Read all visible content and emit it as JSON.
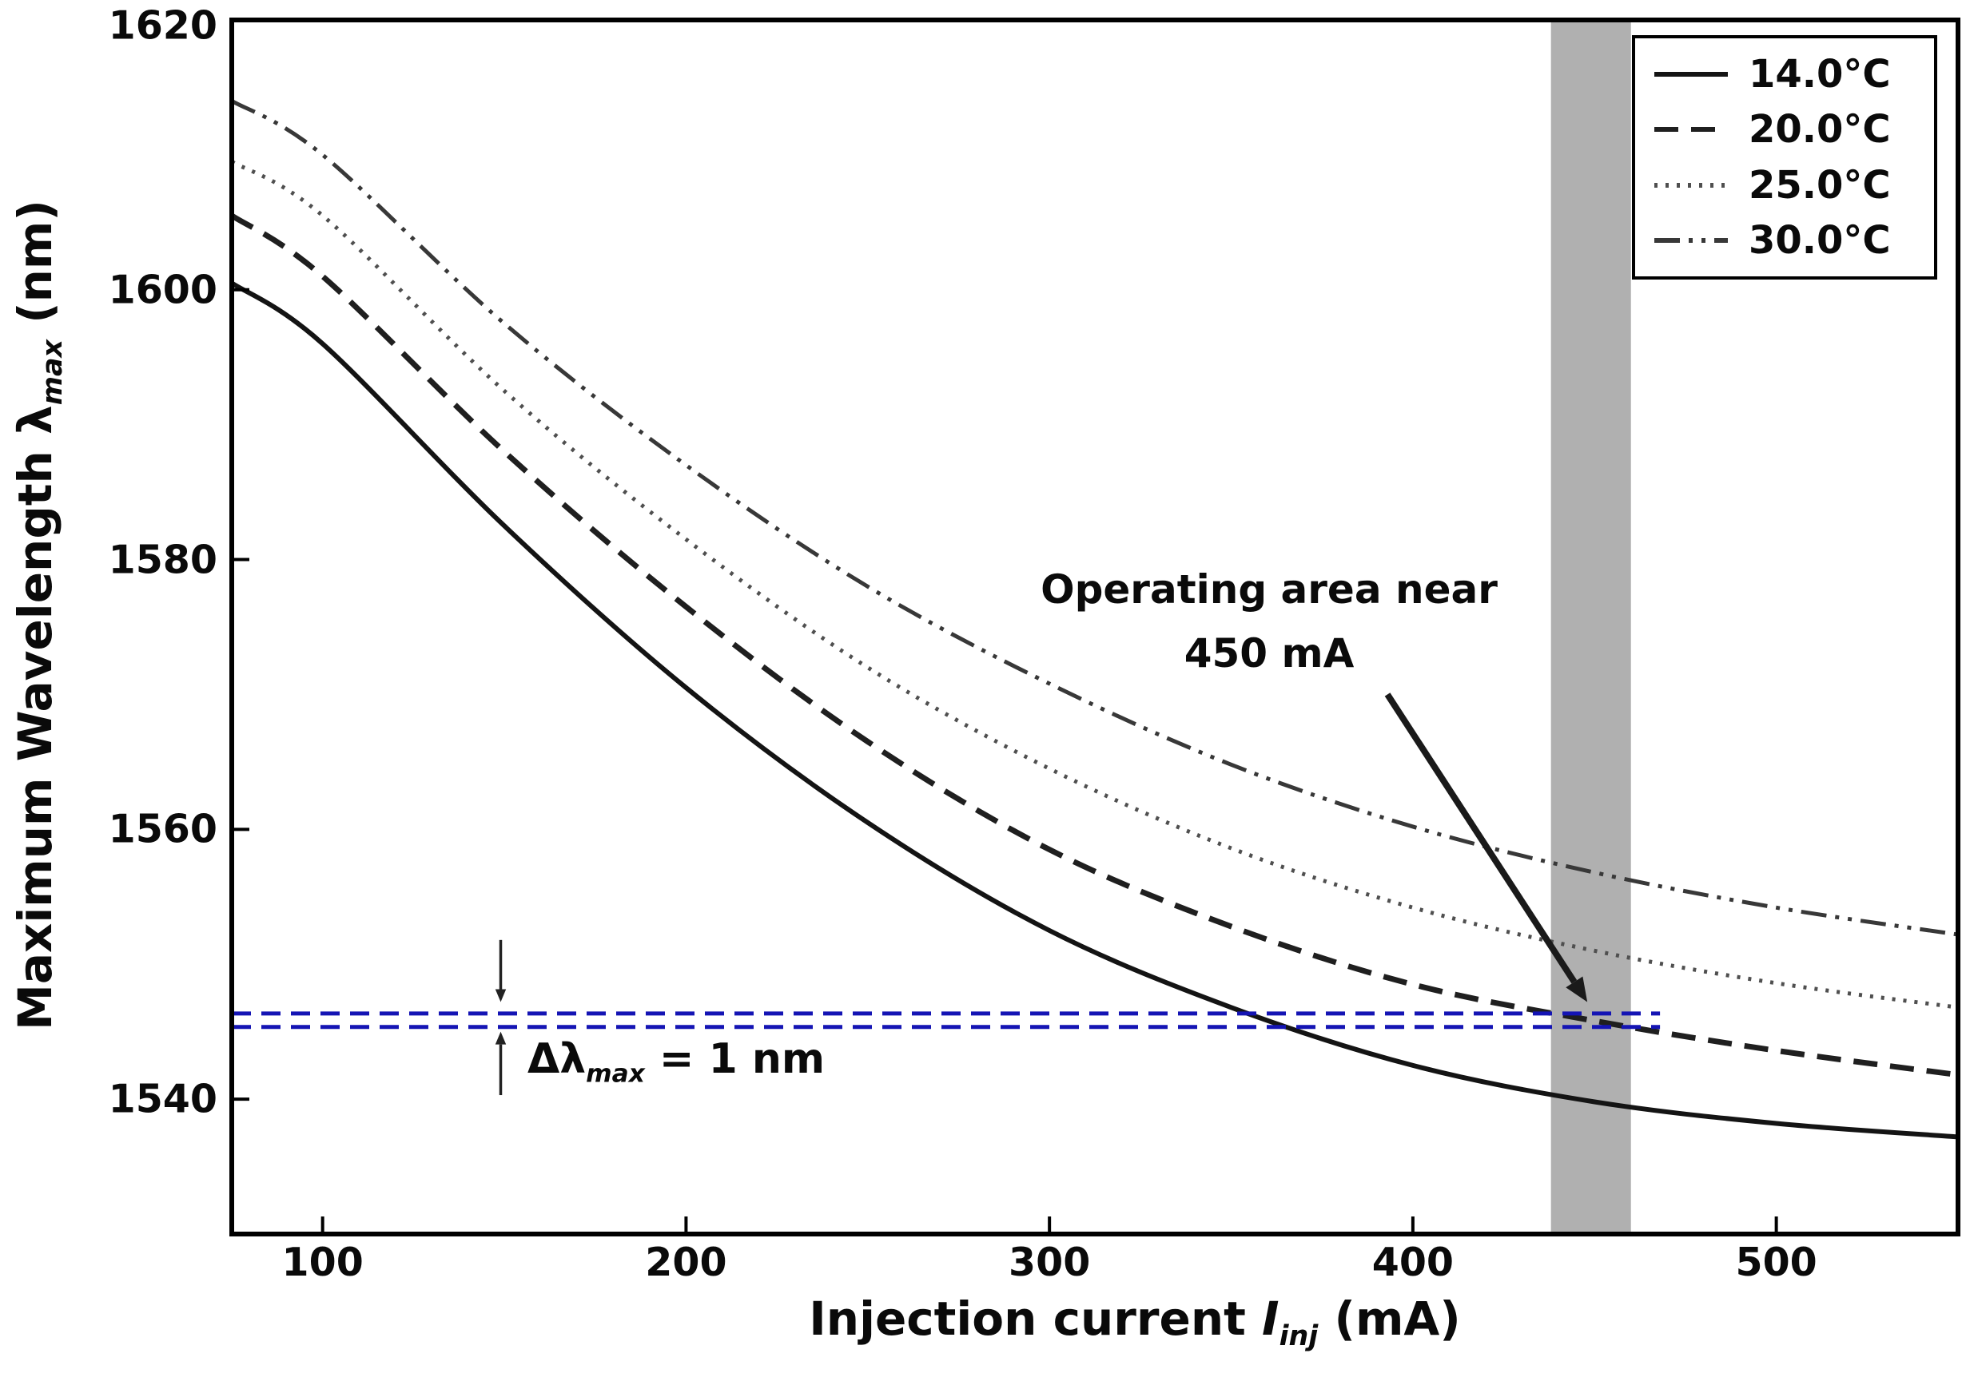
{
  "chart_data": {
    "type": "line",
    "title": "",
    "xlabel_parts": {
      "pre": "Injection current ",
      "var": "I",
      "sub": "inj",
      "post": " (mA)"
    },
    "ylabel_parts": {
      "pre": "Maximum Wavelength λ",
      "sub": "max",
      "post": " (nm)"
    },
    "xlim": [
      75,
      550
    ],
    "ylim": [
      1530,
      1620
    ],
    "x_ticks": [
      "100",
      "200",
      "300",
      "400",
      "500"
    ],
    "x_tick_values": [
      100,
      200,
      300,
      400,
      500
    ],
    "y_ticks": [
      "1540",
      "1560",
      "1580",
      "1600",
      "1620"
    ],
    "y_tick_values": [
      1540,
      1560,
      1580,
      1600,
      1620
    ],
    "grid": false,
    "legend_position": "top-right",
    "x": [
      75,
      100,
      150,
      200,
      250,
      300,
      350,
      400,
      450,
      500,
      550
    ],
    "series": [
      {
        "name": "14.0°C",
        "style": "solid",
        "color": "#141414",
        "width": 6,
        "dash": "",
        "values": [
          1600.5,
          1596.0,
          1582.5,
          1570.5,
          1560.5,
          1552.5,
          1546.8,
          1542.5,
          1539.8,
          1538.2,
          1537.2
        ]
      },
      {
        "name": "20.0°C",
        "style": "dashed",
        "color": "#1f1f1f",
        "width": 7,
        "dash": "30 16",
        "values": [
          1605.5,
          1601.0,
          1588.0,
          1576.5,
          1566.5,
          1558.5,
          1552.8,
          1548.5,
          1545.8,
          1543.6,
          1541.8
        ]
      },
      {
        "name": "25.0°C",
        "style": "dotted",
        "color": "#4f4f4f",
        "width": 5,
        "dash": "4 10",
        "values": [
          1609.5,
          1605.5,
          1592.5,
          1581.5,
          1572.0,
          1564.5,
          1558.6,
          1554.2,
          1551.0,
          1548.6,
          1546.8
        ]
      },
      {
        "name": "30.0°C",
        "style": "dash-dot-dot",
        "color": "#383838",
        "width": 5,
        "dash": "32 11 5 11 5 11",
        "values": [
          1614.0,
          1610.0,
          1597.5,
          1587.0,
          1578.0,
          1570.8,
          1564.8,
          1560.2,
          1556.8,
          1554.2,
          1552.2
        ]
      }
    ],
    "annotations": {
      "operating": {
        "line1": "Operating area near",
        "line2": "450 mA",
        "band_x": [
          438,
          460
        ],
        "band_color": "#b0b0b0",
        "arrow_from": [
          393,
          1570
        ],
        "arrow_to": [
          448,
          1547.2
        ],
        "arrow_color": "#1a1a1a"
      },
      "delta": {
        "pre": "Δλ",
        "sub": "max",
        "post": " = 1 nm",
        "lines_y": [
          1546.35,
          1545.35
        ],
        "x_range": [
          75,
          468
        ],
        "color": "#1414b4",
        "line_dash": "24 13",
        "arrow_x": 149,
        "top_arrow_y": [
          1551.8,
          1547.2
        ],
        "bottom_arrow_y": [
          1540.3,
          1545.0
        ]
      }
    },
    "frame_color": "#000000",
    "text_color": "#0a0a0a",
    "background": "#ffffff"
  }
}
